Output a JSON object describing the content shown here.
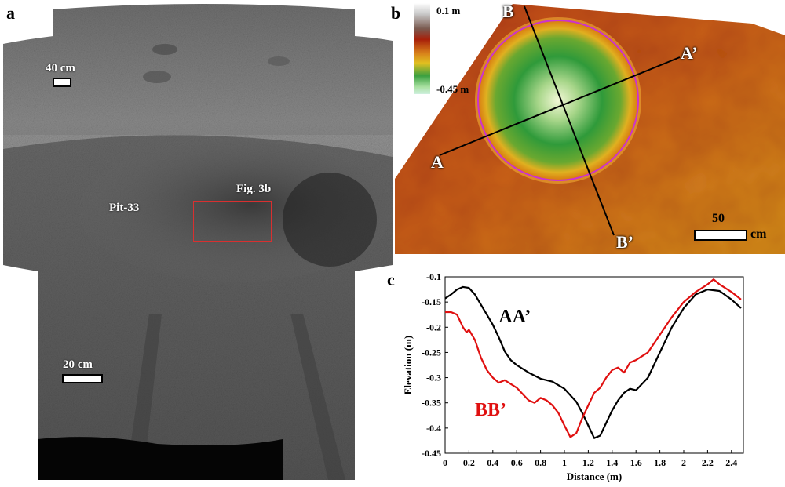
{
  "panels": {
    "a": {
      "letter": "a",
      "scale_top": "40 cm",
      "scale_bottom": "20 cm",
      "pit_label": "Pit-33",
      "fig_ref": "Fig. 3b"
    },
    "b": {
      "letter": "b",
      "colorbar_max": "0.1 m",
      "colorbar_min": "-0.45 m",
      "profile_labels": {
        "A": "A",
        "A_prime": "A’",
        "B": "B",
        "B_prime": "B’"
      },
      "scale_value": "50",
      "scale_unit": "cm"
    },
    "c": {
      "letter": "c"
    }
  },
  "chart_data": {
    "type": "line",
    "xlabel": "Distance (m)",
    "ylabel": "Elevation (m)",
    "xlim": [
      0,
      2.5
    ],
    "ylim": [
      -0.45,
      -0.1
    ],
    "xticks": [
      "0",
      "0.2",
      "0.4",
      "0.6",
      "0.8",
      "1",
      "1.2",
      "1.4",
      "1.6",
      "1.8",
      "2",
      "2.2",
      "2.4"
    ],
    "yticks": [
      "-0.1",
      "-0.15",
      "-0.2",
      "-0.25",
      "-0.3",
      "-0.35",
      "-0.4",
      "-0.45"
    ],
    "series": [
      {
        "name": "AA’",
        "color": "#000000",
        "x": [
          0,
          0.05,
          0.1,
          0.15,
          0.2,
          0.25,
          0.3,
          0.35,
          0.4,
          0.45,
          0.5,
          0.55,
          0.6,
          0.7,
          0.8,
          0.9,
          1.0,
          1.1,
          1.15,
          1.2,
          1.25,
          1.3,
          1.35,
          1.4,
          1.45,
          1.5,
          1.55,
          1.6,
          1.7,
          1.8,
          1.9,
          2.0,
          2.1,
          2.2,
          2.3,
          2.4,
          2.48
        ],
        "y": [
          -0.143,
          -0.135,
          -0.125,
          -0.12,
          -0.122,
          -0.135,
          -0.155,
          -0.175,
          -0.195,
          -0.22,
          -0.248,
          -0.265,
          -0.275,
          -0.29,
          -0.302,
          -0.308,
          -0.322,
          -0.348,
          -0.37,
          -0.395,
          -0.42,
          -0.415,
          -0.39,
          -0.365,
          -0.345,
          -0.33,
          -0.322,
          -0.325,
          -0.3,
          -0.25,
          -0.2,
          -0.162,
          -0.135,
          -0.125,
          -0.128,
          -0.145,
          -0.162
        ]
      },
      {
        "name": "BB’",
        "color": "#e01010",
        "x": [
          0,
          0.05,
          0.1,
          0.15,
          0.18,
          0.2,
          0.25,
          0.3,
          0.35,
          0.4,
          0.45,
          0.5,
          0.6,
          0.7,
          0.75,
          0.8,
          0.85,
          0.9,
          0.95,
          1.0,
          1.05,
          1.1,
          1.15,
          1.2,
          1.25,
          1.3,
          1.35,
          1.4,
          1.45,
          1.5,
          1.55,
          1.6,
          1.7,
          1.8,
          1.9,
          2.0,
          2.1,
          2.2,
          2.25,
          2.3,
          2.4,
          2.48
        ],
        "y": [
          -0.17,
          -0.17,
          -0.175,
          -0.2,
          -0.21,
          -0.205,
          -0.225,
          -0.26,
          -0.285,
          -0.3,
          -0.31,
          -0.305,
          -0.32,
          -0.345,
          -0.35,
          -0.34,
          -0.345,
          -0.355,
          -0.37,
          -0.395,
          -0.418,
          -0.41,
          -0.38,
          -0.355,
          -0.33,
          -0.32,
          -0.3,
          -0.285,
          -0.28,
          -0.29,
          -0.27,
          -0.265,
          -0.25,
          -0.215,
          -0.18,
          -0.15,
          -0.13,
          -0.115,
          -0.105,
          -0.115,
          -0.13,
          -0.145
        ]
      }
    ]
  },
  "colors": {
    "axis": "#000000",
    "scalebox_red": "#d83030",
    "circle": "#cc33cc"
  }
}
